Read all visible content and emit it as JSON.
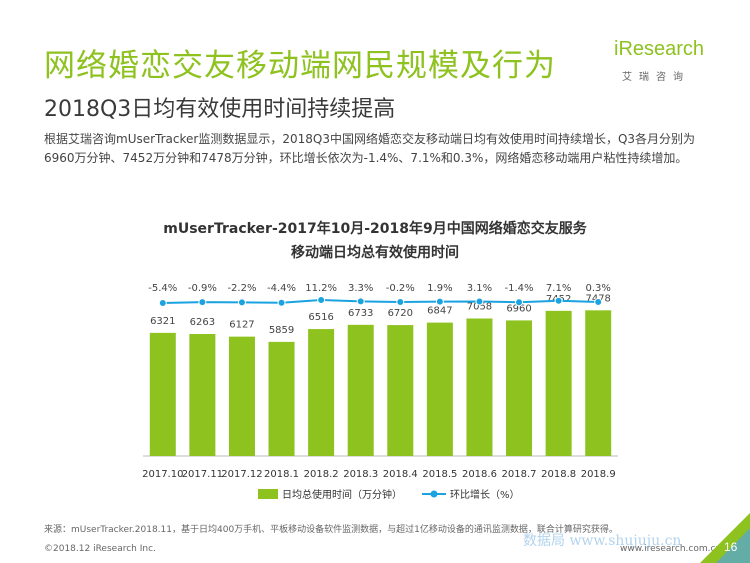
{
  "header": {
    "title": "网络婚恋交友移动端网民规模及行为",
    "subtitle": "2018Q3日均有效使用时间持续提高",
    "description": "根据艾瑞咨询mUserTracker监测数据显示，2018Q3中国网络婚恋交友移动端日均有效使用时间持续增长，Q3各月分别为6960万分钟、7452万分钟和7478万分钟，环比增长依次为-1.4%、7.1%和0.3%，网络婚恋移动端用户粘性持续增加。"
  },
  "logo": {
    "name": "iResearch",
    "sub": "艾瑞咨询"
  },
  "chart_data": {
    "type": "bar",
    "title_line1": "mUserTracker-2017年10月-2018年9月中国网络婚恋交友服务",
    "title_line2": "移动端日均总有效使用时间",
    "categories": [
      "2017.10",
      "2017.11",
      "2017.12",
      "2018.1",
      "2018.2",
      "2018.3",
      "2018.4",
      "2018.5",
      "2018.6",
      "2018.7",
      "2018.8",
      "2018.9"
    ],
    "series": [
      {
        "name": "日均总使用时间（万分钟）",
        "type": "bar",
        "values": [
          6321,
          6263,
          6127,
          5859,
          6516,
          6733,
          6720,
          6847,
          7058,
          6960,
          7452,
          7478
        ],
        "color": "#8dc21f"
      },
      {
        "name": "环比增长（%）",
        "type": "line",
        "values": [
          -5.4,
          -0.9,
          -2.2,
          -4.4,
          11.2,
          3.3,
          -0.2,
          1.9,
          3.1,
          -1.4,
          7.1,
          0.3
        ],
        "labels": [
          "-5.4%",
          "-0.9%",
          "-2.2%",
          "-4.4%",
          "11.2%",
          "3.3%",
          "-0.2%",
          "1.9%",
          "3.1%",
          "-1.4%",
          "7.1%",
          "0.3%"
        ],
        "color": "#1aa3e0"
      }
    ],
    "ylim": [
      0,
      7700
    ],
    "legend_position": "bottom",
    "grid": false
  },
  "footer": {
    "source": "来源：mUserTracker.2018.11，基于日均400万手机、平板移动设备软件监测数据，与超过1亿移动设备的通讯监测数据，联合计算研究获得。",
    "copyright": "©2018.12 iResearch Inc.",
    "url": "www.iresearch.com.cn",
    "page": "16",
    "watermark": "数据局 www.shujuju.cn"
  },
  "colors": {
    "accent": "#8dc21f",
    "line": "#1aa3e0"
  }
}
